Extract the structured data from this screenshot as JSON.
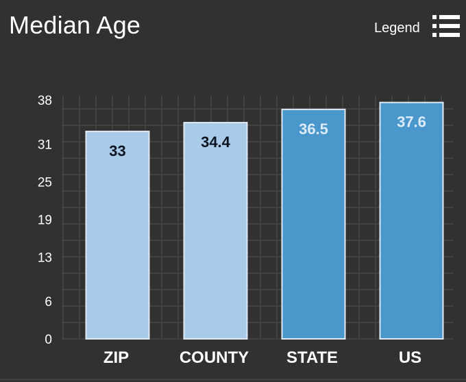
{
  "widget": {
    "title": "Median Age",
    "legend_label": "Legend",
    "legend_icon": "list-icon"
  },
  "colors": {
    "background": "#313131",
    "grid": "#474747",
    "local_bar": "#a9cbe9",
    "broad_bar": "#4a97cc",
    "local_value_text": "#0d1522",
    "broad_value_text": "#dcebf7"
  },
  "chart_data": {
    "type": "bar",
    "title": "Median Age",
    "xlabel": "",
    "ylabel": "",
    "categories": [
      "ZIP",
      "COUNTY",
      "STATE",
      "US"
    ],
    "values": [
      33,
      34.4,
      36.5,
      37.6
    ],
    "value_labels": [
      "33",
      "34.4",
      "36.5",
      "37.6"
    ],
    "bar_styles": [
      "local",
      "local",
      "broad",
      "broad"
    ],
    "ylim": [
      0,
      38
    ],
    "yticks": [
      0,
      6,
      13,
      19,
      25,
      31,
      38
    ],
    "ytick_labels": [
      "0",
      "6",
      "13",
      "19",
      "25",
      "31",
      "38"
    ],
    "grid": true,
    "legend": "hidden"
  }
}
